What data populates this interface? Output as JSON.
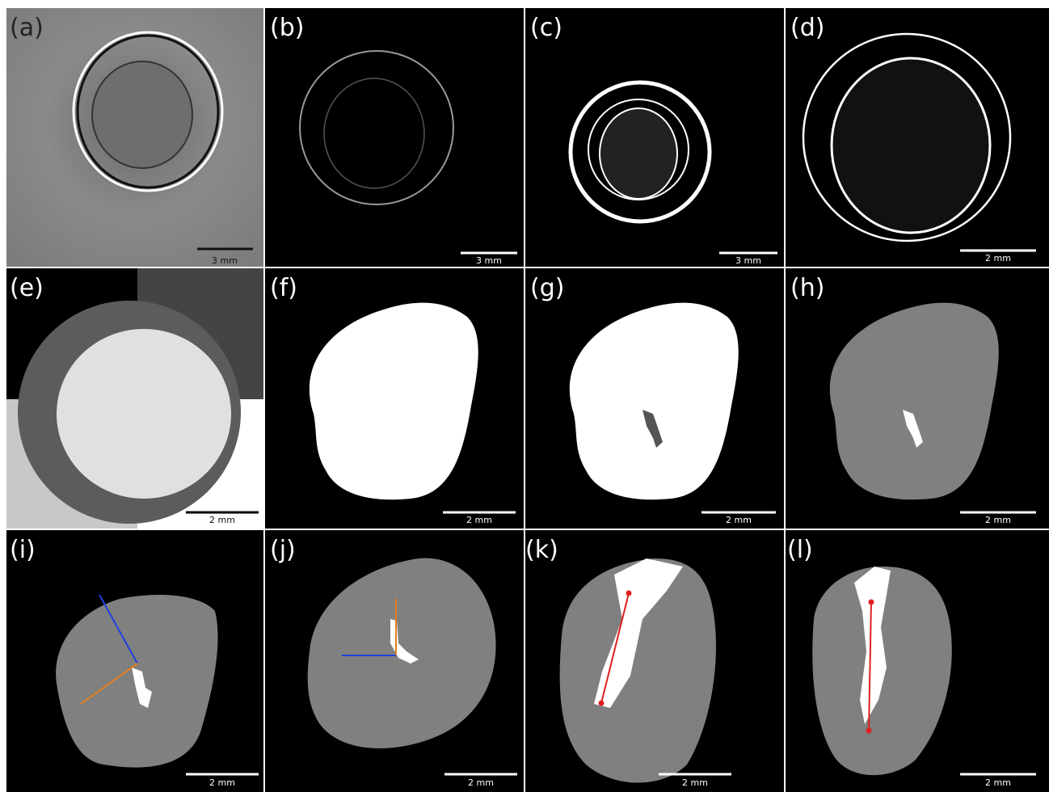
{
  "panels": [
    {
      "label": "(a)",
      "scale": "3 mm"
    },
    {
      "label": "(b)",
      "scale": "3 mm"
    },
    {
      "label": "(c)",
      "scale": "3 mm"
    },
    {
      "label": "(d)",
      "scale": "2 mm"
    },
    {
      "label": "(e)",
      "scale": "2 mm"
    },
    {
      "label": "(f)",
      "scale": "2 mm"
    },
    {
      "label": "(g)",
      "scale": "2 mm"
    },
    {
      "label": "(h)",
      "scale": "2 mm"
    },
    {
      "label": "(i)",
      "scale": "2 mm"
    },
    {
      "label": "(j)",
      "scale": "2 mm"
    },
    {
      "label": "(k)",
      "scale": "2 mm"
    },
    {
      "label": "(l)",
      "scale": "2 mm"
    }
  ]
}
